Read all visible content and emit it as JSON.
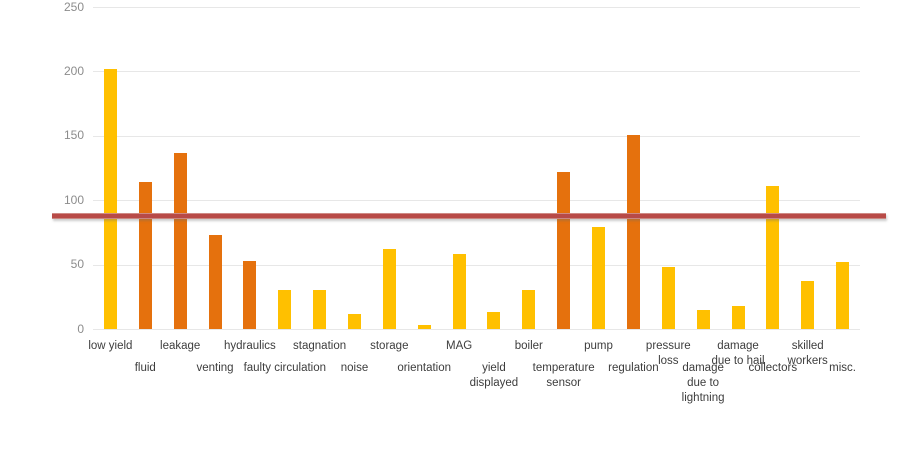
{
  "page": {
    "background": "#FFFFFF"
  },
  "colors": {
    "bar_yellow": "#FFC000",
    "bar_orange": "#E5710D",
    "reference_line": "#B84A47",
    "gridline": "#E7E7E7",
    "y_tick_text": "#8C8C8C",
    "x_label_text": "#3D3D3D"
  },
  "chart_data": {
    "type": "bar",
    "title": "",
    "xlabel": "",
    "ylabel": "",
    "ylim": [
      0,
      250
    ],
    "y_ticks": [
      0,
      50,
      100,
      150,
      200,
      250
    ],
    "grid": true,
    "legend": "none",
    "categories": [
      "low yield",
      "fluid",
      "leakage",
      "venting",
      "hydraulics",
      "faulty circulation",
      "stagnation",
      "noise",
      "storage",
      "orientation",
      "MAG",
      "yield displayed",
      "boiler",
      "temperature sensor",
      "pump",
      "regulation",
      "pressure loss",
      "damage due to lightning",
      "damage due to hail",
      "collectors",
      "skilled workers",
      "misc."
    ],
    "label_lines": [
      [
        "low yield"
      ],
      [
        "fluid"
      ],
      [
        "leakage"
      ],
      [
        "venting"
      ],
      [
        "hydraulics"
      ],
      [
        "faulty circulation"
      ],
      [
        "stagnation"
      ],
      [
        "noise"
      ],
      [
        "storage"
      ],
      [
        "orientation"
      ],
      [
        "MAG"
      ],
      [
        "yield",
        "displayed"
      ],
      [
        "boiler"
      ],
      [
        "temperature",
        "sensor"
      ],
      [
        "pump"
      ],
      [
        "regulation"
      ],
      [
        "pressure",
        "loss"
      ],
      [
        "damage",
        "due to",
        "lightning"
      ],
      [
        "damage",
        "due to hail"
      ],
      [
        "collectors"
      ],
      [
        "skilled",
        "workers"
      ],
      [
        "misc."
      ]
    ],
    "values": [
      202,
      114,
      137,
      73,
      53,
      30,
      30,
      12,
      62,
      3,
      58,
      13,
      30,
      122,
      79,
      151,
      48,
      15,
      18,
      111,
      37,
      52
    ],
    "bar_colors": [
      "yellow",
      "orange",
      "orange",
      "orange",
      "orange",
      "yellow",
      "yellow",
      "yellow",
      "yellow",
      "yellow",
      "yellow",
      "yellow",
      "yellow",
      "orange",
      "yellow",
      "orange",
      "yellow",
      "yellow",
      "yellow",
      "yellow",
      "yellow",
      "yellow"
    ],
    "reference_line": {
      "value": 88,
      "color": "#B84A47"
    }
  }
}
